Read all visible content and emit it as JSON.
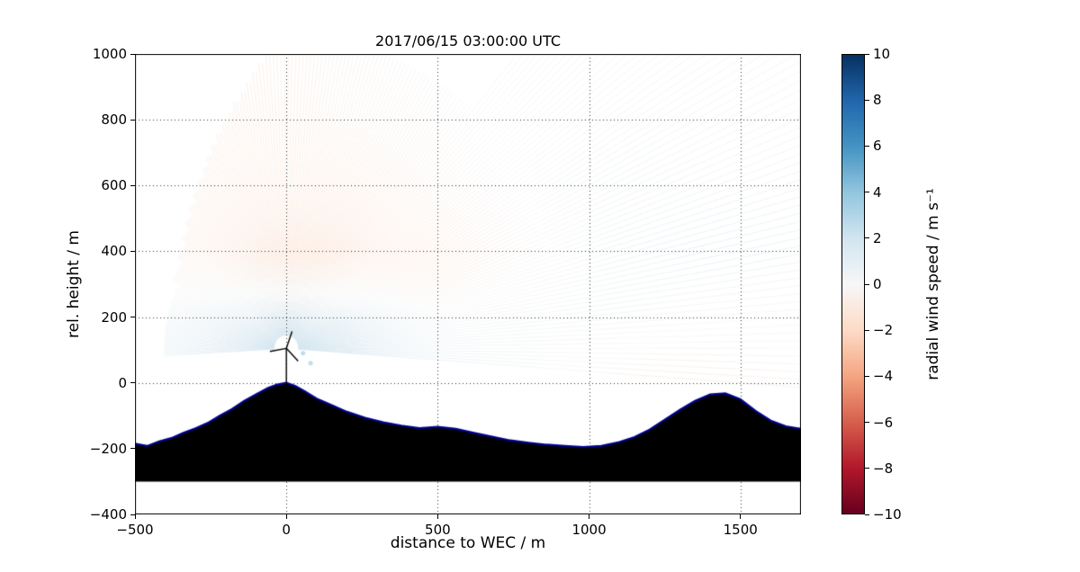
{
  "title": "2017/06/15 03:00:00 UTC",
  "chart_data": {
    "type": "heatmap",
    "subtype": "lidar-rhi-scan-over-terrain",
    "title": "2017/06/15 03:00:00 UTC",
    "xlabel": "distance to WEC / m",
    "ylabel": "rel. height / m",
    "xlim": [
      -500,
      1700
    ],
    "ylim": [
      -400,
      1000
    ],
    "xticks": [
      -500,
      0,
      500,
      1000,
      1500
    ],
    "yticks": [
      -400,
      -200,
      0,
      200,
      400,
      600,
      800,
      1000
    ],
    "grid": true,
    "colorbar": {
      "label": "radial wind speed / m s⁻¹",
      "range": [
        -10,
        10
      ],
      "ticks": [
        -10,
        -8,
        -6,
        -4,
        -2,
        0,
        2,
        4,
        6,
        8,
        10
      ],
      "colormap": "RdBu",
      "anchors": [
        "#67001f",
        "#b2182b",
        "#d6604d",
        "#f4a582",
        "#fddbc7",
        "#f7f7f7",
        "#d1e5f0",
        "#92c5de",
        "#4393c3",
        "#2166ac",
        "#053061"
      ]
    },
    "scan": {
      "origin_x": 0,
      "origin_z": 105,
      "angle_start_deg": -4,
      "angle_end_deg": 184,
      "angle_step_deg": 0.8
    },
    "field": {
      "x": [
        -400,
        -100,
        200,
        500,
        800,
        1100,
        1400,
        1700
      ],
      "z": [
        0,
        200,
        400,
        600,
        800,
        1000
      ],
      "values": [
        [
          1.5,
          2.5,
          3.0,
          1.5,
          0.5,
          -1.2,
          -1.5,
          -0.6
        ],
        [
          0.8,
          1.0,
          1.2,
          0.3,
          0.5,
          0.8,
          0.2,
          0.2
        ],
        [
          -1.2,
          -1.6,
          -2.2,
          -2.0,
          -0.3,
          1.0,
          1.5,
          1.0
        ],
        [
          -1.2,
          -1.3,
          -1.5,
          -1.0,
          0.2,
          0.8,
          0.8,
          0.8
        ],
        [
          -1.2,
          -1.2,
          -0.8,
          -0.4,
          0.4,
          0.5,
          0.5,
          0.5
        ],
        [
          -1.0,
          -1.0,
          -0.6,
          0.0,
          0.4,
          0.5,
          0.5,
          0.5
        ]
      ]
    },
    "terrain": {
      "fill_color": "#000000",
      "edge_color": "#00008e",
      "base": -300,
      "x": [
        -500,
        -460,
        -420,
        -380,
        -340,
        -300,
        -260,
        -220,
        -180,
        -140,
        -100,
        -60,
        -30,
        0,
        30,
        60,
        100,
        150,
        200,
        260,
        320,
        380,
        440,
        500,
        560,
        620,
        680,
        740,
        800,
        860,
        920,
        980,
        1040,
        1100,
        1150,
        1200,
        1250,
        1300,
        1350,
        1400,
        1450,
        1500,
        1550,
        1600,
        1650,
        1700
      ],
      "y": [
        -185,
        -192,
        -178,
        -168,
        -152,
        -138,
        -122,
        -100,
        -80,
        -55,
        -35,
        -15,
        -5,
        0,
        -10,
        -25,
        -48,
        -68,
        -88,
        -106,
        -120,
        -130,
        -138,
        -134,
        -140,
        -152,
        -164,
        -175,
        -182,
        -188,
        -192,
        -195,
        -192,
        -180,
        -165,
        -142,
        -112,
        -82,
        -55,
        -35,
        -32,
        -50,
        -85,
        -115,
        -132,
        -140
      ]
    },
    "turbine": {
      "x": 0,
      "hub_height": 105,
      "rotor_radius": 55
    },
    "markers": [
      {
        "x": 55,
        "z": 90,
        "v": 3
      },
      {
        "x": 80,
        "z": 60,
        "v": 3
      }
    ]
  }
}
